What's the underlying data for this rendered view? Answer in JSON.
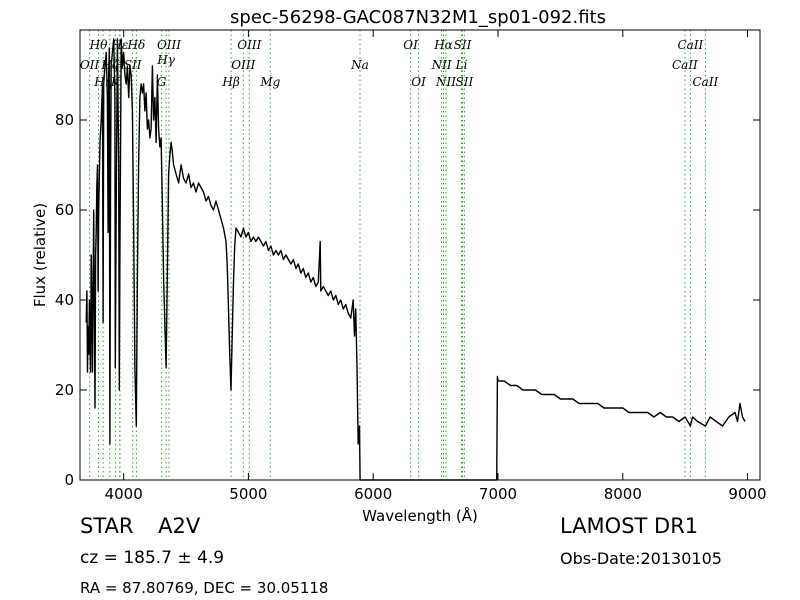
{
  "chart_data": {
    "type": "line",
    "title": "spec-56298-GAC087N32M1_sp01-092.fits",
    "xlabel": "Wavelength (Å)",
    "ylabel": "Flux (relative)",
    "xlim": [
      3650,
      9100
    ],
    "ylim": [
      0,
      100
    ],
    "xticks": [
      4000,
      5000,
      6000,
      7000,
      8000,
      9000
    ],
    "yticks": [
      0,
      20,
      40,
      60,
      80
    ],
    "grid": false,
    "series": [
      {
        "color": "#000000",
        "points": [
          [
            3700,
            35
          ],
          [
            3705,
            42
          ],
          [
            3710,
            24
          ],
          [
            3715,
            34
          ],
          [
            3720,
            28
          ],
          [
            3725,
            40
          ],
          [
            3730,
            30
          ],
          [
            3735,
            24
          ],
          [
            3740,
            50
          ],
          [
            3745,
            38
          ],
          [
            3750,
            24
          ],
          [
            3755,
            44
          ],
          [
            3760,
            60
          ],
          [
            3765,
            40
          ],
          [
            3770,
            16
          ],
          [
            3775,
            50
          ],
          [
            3780,
            55
          ],
          [
            3785,
            65
          ],
          [
            3790,
            70
          ],
          [
            3795,
            42
          ],
          [
            3800,
            60
          ],
          [
            3810,
            75
          ],
          [
            3820,
            80
          ],
          [
            3830,
            88
          ],
          [
            3835,
            35
          ],
          [
            3840,
            88
          ],
          [
            3850,
            92
          ],
          [
            3860,
            95
          ],
          [
            3870,
            85
          ],
          [
            3875,
            55
          ],
          [
            3880,
            90
          ],
          [
            3885,
            96
          ],
          [
            3890,
            8
          ],
          [
            3895,
            70
          ],
          [
            3900,
            92
          ],
          [
            3910,
            95
          ],
          [
            3920,
            98
          ],
          [
            3930,
            85
          ],
          [
            3933,
            25
          ],
          [
            3940,
            60
          ],
          [
            3950,
            98
          ],
          [
            3960,
            70
          ],
          [
            3965,
            20
          ],
          [
            3970,
            50
          ],
          [
            3980,
            98
          ],
          [
            3990,
            92
          ],
          [
            4000,
            95
          ],
          [
            4010,
            90
          ],
          [
            4020,
            88
          ],
          [
            4030,
            92
          ],
          [
            4040,
            85
          ],
          [
            4050,
            92
          ],
          [
            4060,
            90
          ],
          [
            4070,
            82
          ],
          [
            4080,
            55
          ],
          [
            4090,
            25
          ],
          [
            4101,
            12
          ],
          [
            4110,
            45
          ],
          [
            4120,
            70
          ],
          [
            4130,
            85
          ],
          [
            4140,
            88
          ],
          [
            4150,
            86
          ],
          [
            4160,
            88
          ],
          [
            4170,
            82
          ],
          [
            4180,
            86
          ],
          [
            4190,
            78
          ],
          [
            4200,
            80
          ],
          [
            4210,
            76
          ],
          [
            4220,
            78
          ],
          [
            4230,
            92
          ],
          [
            4240,
            80
          ],
          [
            4250,
            85
          ],
          [
            4260,
            75
          ],
          [
            4270,
            90
          ],
          [
            4280,
            78
          ],
          [
            4290,
            74
          ],
          [
            4300,
            76
          ],
          [
            4310,
            62
          ],
          [
            4320,
            45
          ],
          [
            4330,
            35
          ],
          [
            4340,
            25
          ],
          [
            4350,
            45
          ],
          [
            4360,
            68
          ],
          [
            4370,
            72
          ],
          [
            4380,
            75
          ],
          [
            4390,
            73
          ],
          [
            4400,
            70
          ],
          [
            4420,
            68
          ],
          [
            4440,
            66
          ],
          [
            4460,
            70
          ],
          [
            4480,
            67
          ],
          [
            4500,
            66
          ],
          [
            4520,
            68
          ],
          [
            4540,
            65
          ],
          [
            4560,
            66
          ],
          [
            4580,
            64
          ],
          [
            4600,
            66
          ],
          [
            4620,
            65
          ],
          [
            4640,
            64
          ],
          [
            4660,
            62
          ],
          [
            4680,
            63
          ],
          [
            4700,
            61
          ],
          [
            4720,
            60
          ],
          [
            4740,
            62
          ],
          [
            4760,
            60
          ],
          [
            4780,
            58
          ],
          [
            4800,
            56
          ],
          [
            4820,
            53
          ],
          [
            4830,
            48
          ],
          [
            4840,
            38
          ],
          [
            4850,
            28
          ],
          [
            4860,
            20
          ],
          [
            4870,
            32
          ],
          [
            4880,
            44
          ],
          [
            4890,
            52
          ],
          [
            4900,
            56
          ],
          [
            4920,
            55
          ],
          [
            4940,
            54
          ],
          [
            4960,
            56
          ],
          [
            4980,
            54
          ],
          [
            5000,
            55
          ],
          [
            5020,
            53
          ],
          [
            5040,
            54
          ],
          [
            5060,
            53
          ],
          [
            5080,
            54
          ],
          [
            5100,
            53
          ],
          [
            5120,
            52
          ],
          [
            5140,
            53
          ],
          [
            5160,
            51
          ],
          [
            5180,
            52
          ],
          [
            5200,
            50
          ],
          [
            5220,
            51
          ],
          [
            5240,
            50
          ],
          [
            5260,
            51
          ],
          [
            5280,
            49
          ],
          [
            5300,
            50
          ],
          [
            5320,
            49
          ],
          [
            5340,
            48
          ],
          [
            5360,
            49
          ],
          [
            5380,
            47
          ],
          [
            5400,
            48
          ],
          [
            5420,
            46
          ],
          [
            5440,
            47
          ],
          [
            5460,
            45
          ],
          [
            5480,
            46
          ],
          [
            5500,
            44
          ],
          [
            5520,
            45
          ],
          [
            5540,
            43
          ],
          [
            5560,
            44
          ],
          [
            5575,
            53
          ],
          [
            5580,
            42
          ],
          [
            5600,
            43
          ],
          [
            5620,
            42
          ],
          [
            5640,
            41
          ],
          [
            5660,
            42
          ],
          [
            5680,
            40
          ],
          [
            5700,
            41
          ],
          [
            5720,
            39
          ],
          [
            5740,
            40
          ],
          [
            5760,
            38
          ],
          [
            5780,
            39
          ],
          [
            5800,
            37
          ],
          [
            5820,
            36
          ],
          [
            5840,
            40
          ],
          [
            5850,
            32
          ],
          [
            5860,
            38
          ],
          [
            5870,
            25
          ],
          [
            5880,
            8
          ],
          [
            5890,
            12
          ],
          [
            5895,
            0
          ],
          [
            6000,
            0
          ],
          [
            6500,
            0
          ],
          [
            6990,
            0
          ],
          [
            6995,
            23
          ],
          [
            7000,
            22
          ],
          [
            7050,
            22
          ],
          [
            7100,
            21
          ],
          [
            7150,
            21
          ],
          [
            7200,
            20
          ],
          [
            7250,
            20
          ],
          [
            7300,
            20
          ],
          [
            7350,
            19
          ],
          [
            7400,
            19
          ],
          [
            7450,
            19
          ],
          [
            7500,
            18
          ],
          [
            7550,
            18
          ],
          [
            7600,
            18
          ],
          [
            7650,
            17
          ],
          [
            7700,
            17
          ],
          [
            7750,
            17
          ],
          [
            7800,
            17
          ],
          [
            7850,
            16
          ],
          [
            7900,
            16
          ],
          [
            7950,
            16
          ],
          [
            8000,
            16
          ],
          [
            8050,
            15
          ],
          [
            8100,
            15
          ],
          [
            8150,
            15
          ],
          [
            8200,
            15
          ],
          [
            8250,
            14
          ],
          [
            8300,
            15
          ],
          [
            8350,
            14
          ],
          [
            8400,
            14
          ],
          [
            8450,
            13
          ],
          [
            8500,
            14
          ],
          [
            8542,
            12
          ],
          [
            8560,
            14
          ],
          [
            8600,
            13
          ],
          [
            8662,
            12
          ],
          [
            8700,
            14
          ],
          [
            8750,
            13
          ],
          [
            8800,
            12
          ],
          [
            8850,
            14
          ],
          [
            8900,
            15
          ],
          [
            8920,
            13
          ],
          [
            8940,
            17
          ],
          [
            8960,
            14
          ],
          [
            8980,
            13
          ]
        ]
      }
    ],
    "lines": [
      {
        "label": "OII",
        "wl": 3727,
        "color": "#2ca02c",
        "row": 2
      },
      {
        "label": "Hθ",
        "wl": 3798,
        "color": "#2ca02c",
        "row": 0
      },
      {
        "label": "Hη",
        "wl": 3835,
        "color": "#2ca02c",
        "row": 3
      },
      {
        "label": "Hζ",
        "wl": 3889,
        "color": "#2ca02c",
        "row": 2
      },
      {
        "label": "K",
        "wl": 3934,
        "color": "#2ca02c",
        "row": 3
      },
      {
        "label": "H",
        "wl": 3969,
        "color": "#2ca02c",
        "row": 2
      },
      {
        "label": "Hε",
        "wl": 3970,
        "color": "#2ca02c",
        "row": 0
      },
      {
        "label": "SII",
        "wl": 4072,
        "color": "#2ca02c",
        "row": 2
      },
      {
        "label": "Hδ",
        "wl": 4102,
        "color": "#2ca02c",
        "row": 0
      },
      {
        "label": "G",
        "wl": 4304,
        "color": "#2ca02c",
        "row": 3
      },
      {
        "label": "Hγ",
        "wl": 4340,
        "color": "#2ca02c",
        "row": 1
      },
      {
        "label": "OIII",
        "wl": 4363,
        "color": "#2ca02c",
        "row": 0
      },
      {
        "label": "Hβ",
        "wl": 4861,
        "color": "#2ca02c",
        "row": 3
      },
      {
        "label": "OIII",
        "wl": 4959,
        "color": "#2ca02c",
        "row": 2
      },
      {
        "label": "OIII",
        "wl": 5007,
        "color": "#2ca02c",
        "row": 0
      },
      {
        "label": "Mg",
        "wl": 5175,
        "color": "#2ca02c",
        "row": 3
      },
      {
        "label": "Na",
        "wl": 5894,
        "color": "#2ca02c",
        "row": 2
      },
      {
        "label": "OI",
        "wl": 6300,
        "color": "#2ca02c",
        "row": 0
      },
      {
        "label": "OI",
        "wl": 6364,
        "color": "#2ca02c",
        "row": 3
      },
      {
        "label": "NII",
        "wl": 6548,
        "color": "#2ca02c",
        "row": 2
      },
      {
        "label": "Hα",
        "wl": 6563,
        "color": "#2ca02c",
        "row": 0
      },
      {
        "label": "NII",
        "wl": 6583,
        "color": "#2ca02c",
        "row": 3
      },
      {
        "label": "Li",
        "wl": 6708,
        "color": "#2ca02c",
        "row": 2
      },
      {
        "label": "SII",
        "wl": 6716,
        "color": "#2ca02c",
        "row": 0
      },
      {
        "label": "SII",
        "wl": 6731,
        "color": "#2ca02c",
        "row": 3
      },
      {
        "label": "CaII",
        "wl": 8498,
        "color": "#2ca02c",
        "row": 2
      },
      {
        "label": "CaII",
        "wl": 8542,
        "color": "#2ca02c",
        "row": 0
      },
      {
        "label": "CaII",
        "wl": 8662,
        "color": "#2ca02c",
        "row": 3
      }
    ]
  },
  "info": {
    "class_label": "STAR",
    "subclass": "A2V",
    "cz_text": "cz = 185.7  ± 4.9",
    "radec_text": "RA = 87.80769, DEC = 30.05118",
    "survey": "LAMOST DR1",
    "obs_date": "Obs-Date:20130105"
  }
}
